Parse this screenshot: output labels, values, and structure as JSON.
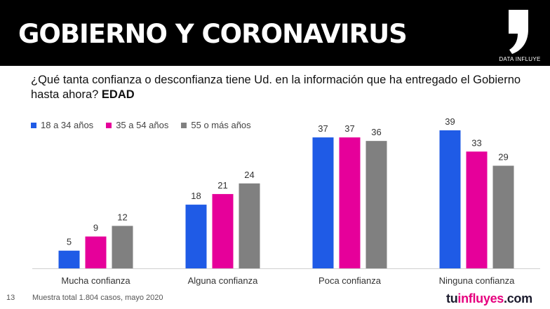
{
  "header": {
    "title": "GOBIERNO Y CORONAVIRUS",
    "logo_label": "DATA INFLUYE"
  },
  "question": {
    "text": "¿Qué tanta confianza o desconfianza tiene Ud. en la información que ha entregado el Gobierno hasta ahora?",
    "emphasis": "EDAD"
  },
  "colors": {
    "series1": "#1f5be6",
    "series2": "#e6009a",
    "series3": "#808080"
  },
  "chart_data": {
    "type": "bar",
    "title": "",
    "xlabel": "",
    "ylabel": "",
    "ylim": [
      0,
      39
    ],
    "grid": false,
    "legend": "top-left",
    "categories": [
      "Mucha confianza",
      "Alguna confianza",
      "Poca confianza",
      "Ninguna confianza"
    ],
    "series": [
      {
        "name": "18 a 34 años",
        "values": [
          5,
          18,
          37,
          39
        ]
      },
      {
        "name": "35 a 54 años",
        "values": [
          9,
          21,
          37,
          33
        ]
      },
      {
        "name": "55 o más años",
        "values": [
          12,
          24,
          36,
          29
        ]
      }
    ]
  },
  "footer": {
    "page_number": "13",
    "note": "Muestra total 1.804 casos, mayo 2020",
    "brand_prefix": "tu",
    "brand_pink": "influyes",
    "brand_suffix": ".com"
  }
}
